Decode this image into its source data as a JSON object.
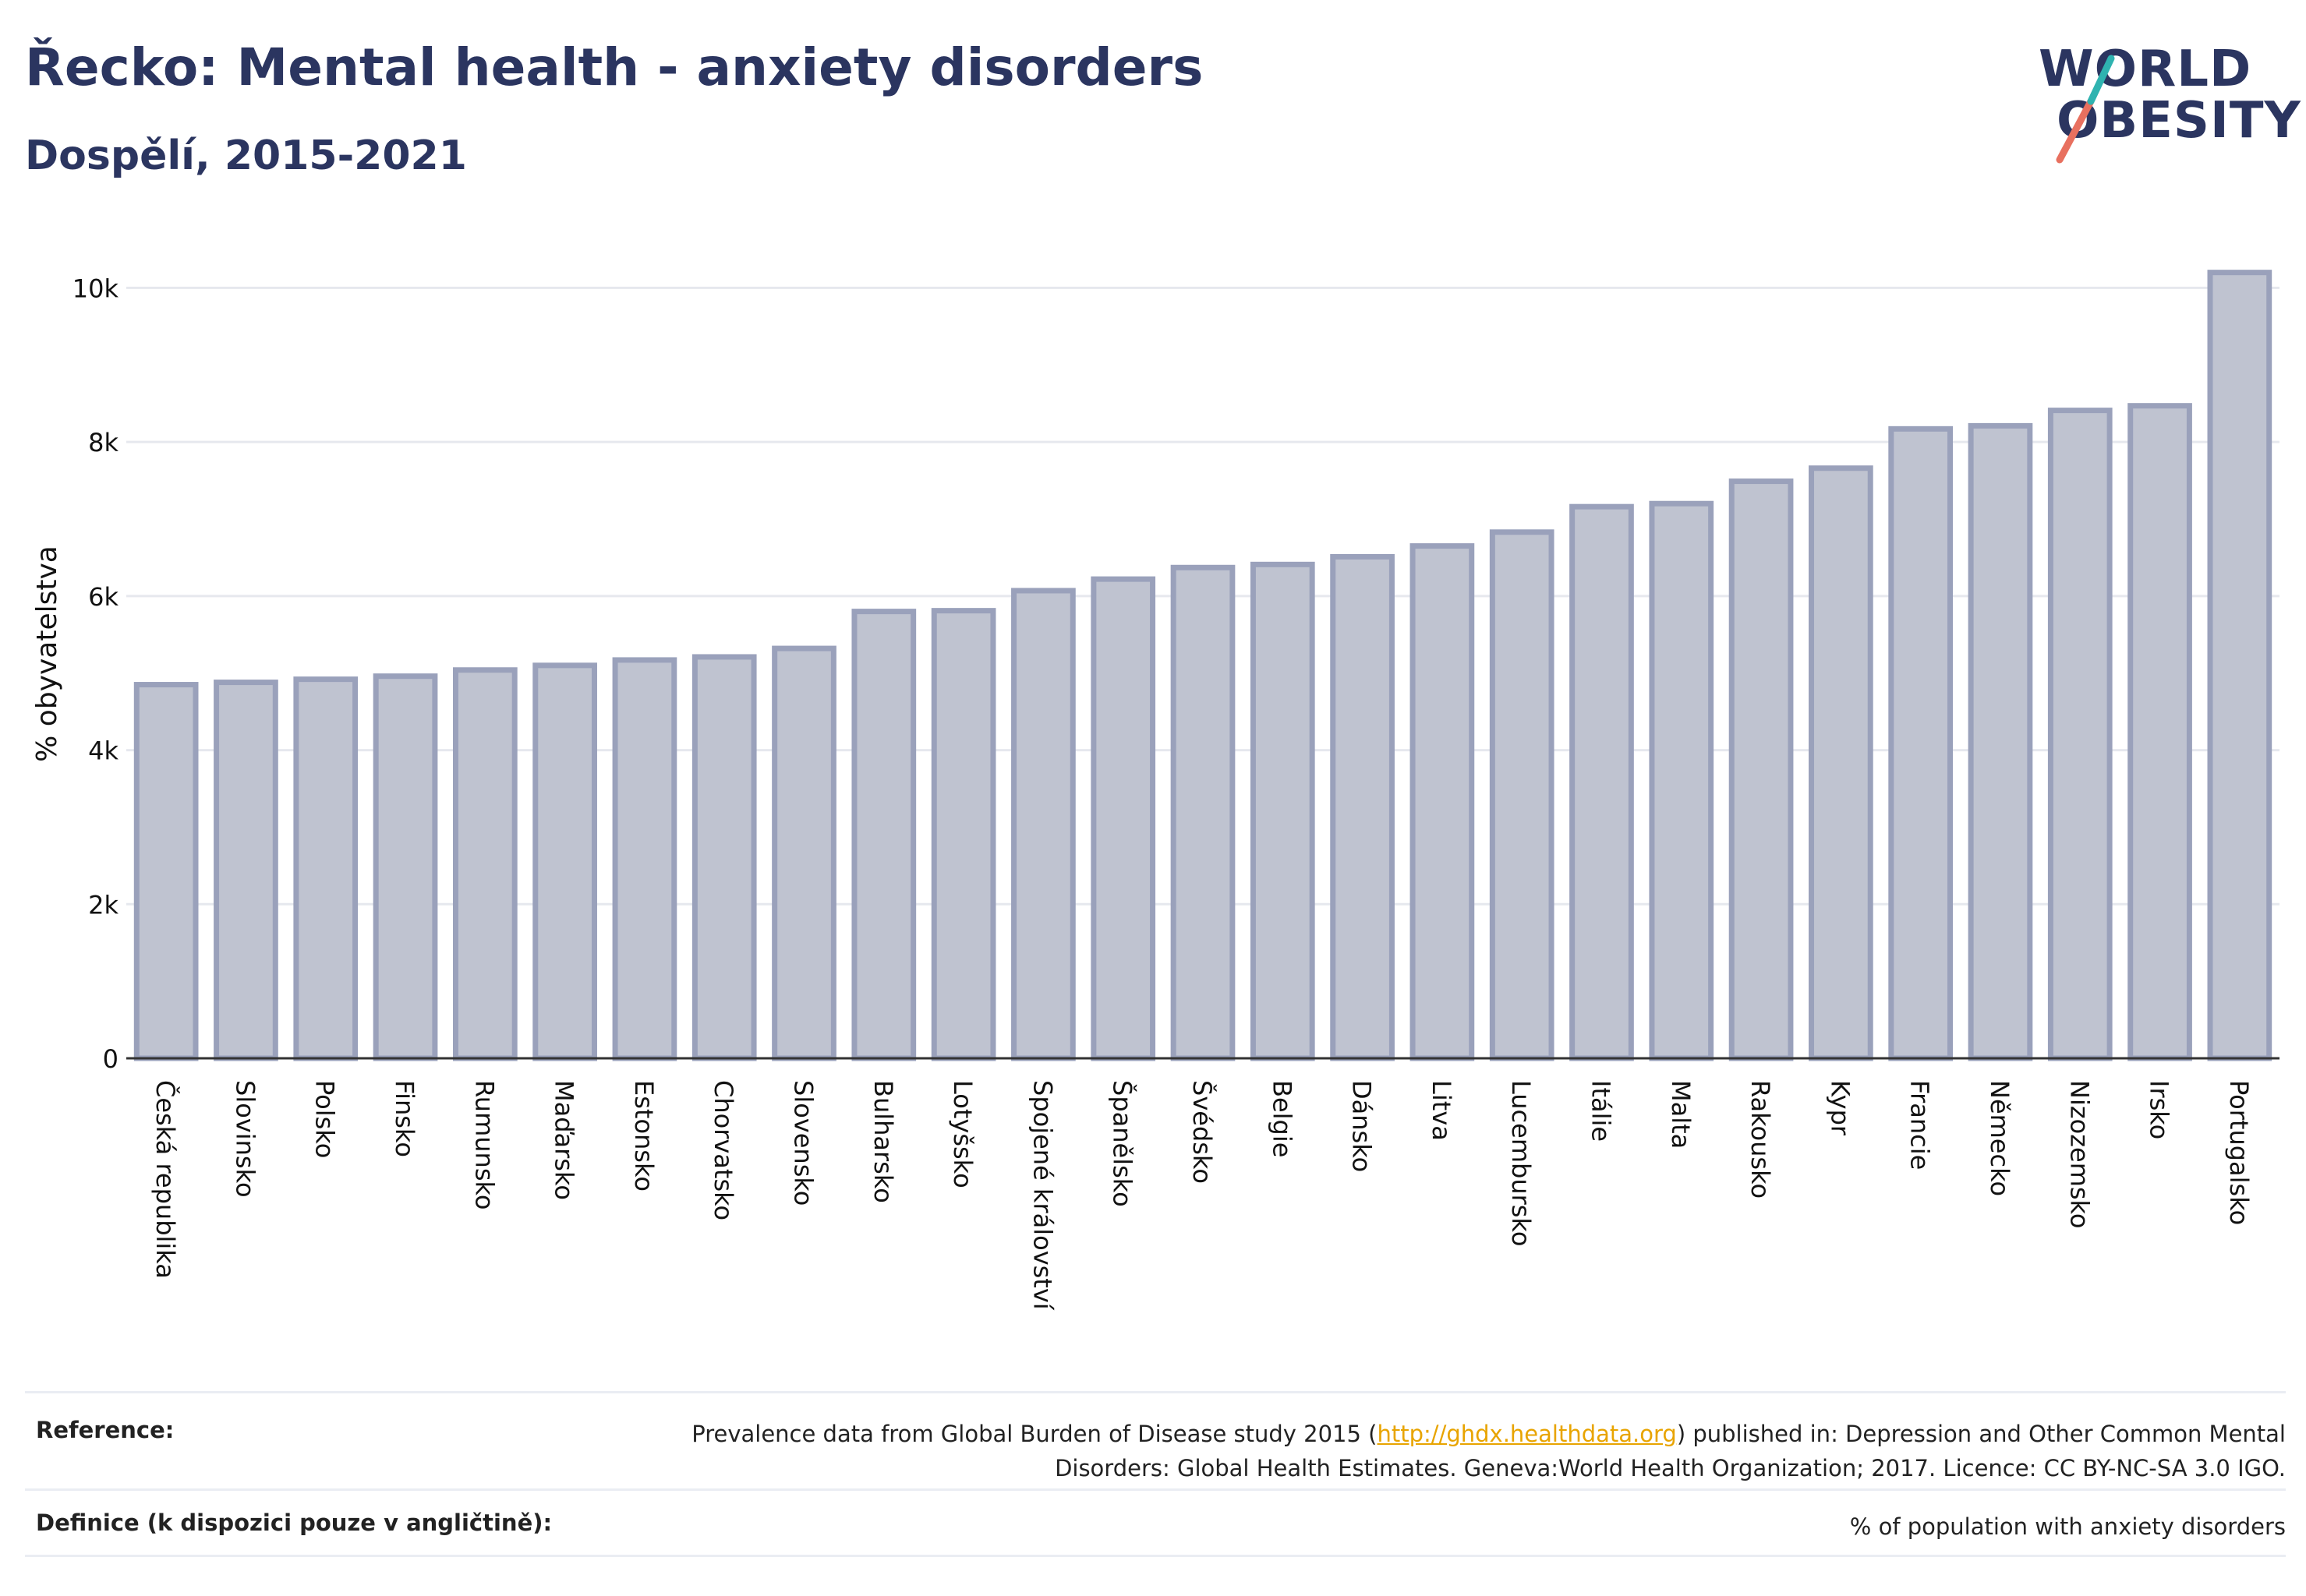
{
  "header": {
    "title": "Řecko: Mental health - anxiety disorders",
    "subtitle": "Dospělí, 2015-2021"
  },
  "logo": {
    "line1": "WORLD",
    "line2": "OBESITY"
  },
  "colors": {
    "bar_fill": "#bfc3d0",
    "bar_stroke": "#9aa1bb",
    "text": "#2b3560",
    "grid": "#e6e8ee",
    "link": "#e8a400"
  },
  "chart_data": {
    "type": "bar",
    "ylabel": "% obyvatelstva",
    "ylim": [
      0,
      10500
    ],
    "yticks": [
      0,
      2000,
      4000,
      6000,
      8000,
      10000
    ],
    "ytick_labels": [
      "0",
      "2k",
      "4k",
      "6k",
      "8k",
      "10k"
    ],
    "grid": true,
    "categories": [
      "Česká republika",
      "Slovinsko",
      "Polsko",
      "Finsko",
      "Rumunsko",
      "Maďarsko",
      "Estonsko",
      "Chorvatsko",
      "Slovensko",
      "Bulharsko",
      "Lotyšsko",
      "Spojené království",
      "Španělsko",
      "Švédsko",
      "Belgie",
      "Dánsko",
      "Litva",
      "Lucembursko",
      "Itálie",
      "Malta",
      "Rakousko",
      "Kypr",
      "Francie",
      "Německo",
      "Nizozemsko",
      "Irsko",
      "Portugalsko"
    ],
    "values": [
      4850,
      4880,
      4920,
      4960,
      5040,
      5100,
      5170,
      5210,
      5320,
      5800,
      5810,
      6070,
      6220,
      6370,
      6410,
      6510,
      6650,
      6830,
      7160,
      7200,
      7490,
      7660,
      8170,
      8210,
      8410,
      8470,
      10200
    ]
  },
  "footer": {
    "reference_label": "Reference:",
    "reference_text_before": "Prevalence data from Global Burden of Disease study 2015 (",
    "reference_link": "http://ghdx.healthdata.org",
    "reference_text_after": ") published in: Depression and Other Common Mental Disorders: Global Health Estimates. Geneva:World Health Organization; 2017. Licence: CC BY-NC-SA 3.0 IGO.",
    "definition_label": "Definice (k dispozici pouze v angličtině):",
    "definition_text": "% of population with anxiety disorders"
  }
}
